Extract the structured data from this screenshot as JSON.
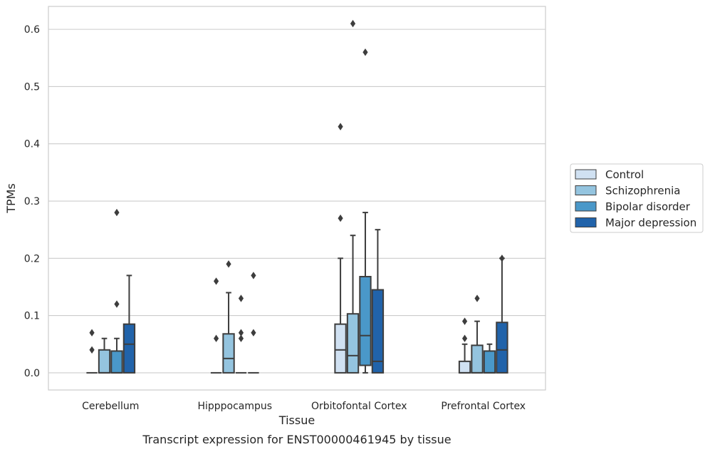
{
  "chart_data": {
    "type": "boxplot",
    "title": "",
    "caption": "Transcript expression for ENST00000461945 by tissue",
    "xlabel": "Tissue",
    "ylabel": "TPMs",
    "ylim": [
      -0.03,
      0.64
    ],
    "yticks": [
      0.0,
      0.1,
      0.2,
      0.3,
      0.4,
      0.5,
      0.6
    ],
    "ytick_labels": [
      "0.0",
      "0.1",
      "0.2",
      "0.3",
      "0.4",
      "0.5",
      "0.6"
    ],
    "grid": "horizontal",
    "legend_position": "right",
    "categories": [
      "Cerebellum",
      "Hipppocampus",
      "Orbitofontal Cortex",
      "Prefrontal Cortex"
    ],
    "series": [
      {
        "name": "Control",
        "color": "#d0e1f2",
        "boxes": [
          {
            "q1": 0.0,
            "median": 0.0,
            "q3": 0.0,
            "whisker_low": 0.0,
            "whisker_high": 0.0,
            "outliers": [
              0.07,
              0.04
            ]
          },
          {
            "q1": 0.0,
            "median": 0.0,
            "q3": 0.0,
            "whisker_low": 0.0,
            "whisker_high": 0.0,
            "outliers": [
              0.16,
              0.06
            ]
          },
          {
            "q1": 0.0,
            "median": 0.04,
            "q3": 0.085,
            "whisker_low": 0.0,
            "whisker_high": 0.2,
            "outliers": [
              0.43,
              0.27
            ]
          },
          {
            "q1": 0.0,
            "median": 0.0,
            "q3": 0.02,
            "whisker_low": 0.0,
            "whisker_high": 0.05,
            "outliers": [
              0.09,
              0.06
            ]
          }
        ]
      },
      {
        "name": "Schizophrenia",
        "color": "#94c4df",
        "boxes": [
          {
            "q1": 0.0,
            "median": 0.0,
            "q3": 0.04,
            "whisker_low": 0.0,
            "whisker_high": 0.06,
            "outliers": []
          },
          {
            "q1": 0.0,
            "median": 0.025,
            "q3": 0.068,
            "whisker_low": 0.0,
            "whisker_high": 0.14,
            "outliers": [
              0.19
            ]
          },
          {
            "q1": 0.0,
            "median": 0.03,
            "q3": 0.103,
            "whisker_low": 0.0,
            "whisker_high": 0.24,
            "outliers": [
              0.61
            ]
          },
          {
            "q1": 0.0,
            "median": 0.0,
            "q3": 0.048,
            "whisker_low": 0.0,
            "whisker_high": 0.09,
            "outliers": [
              0.13
            ]
          }
        ]
      },
      {
        "name": "Bipolar disorder",
        "color": "#4a98c9",
        "boxes": [
          {
            "q1": 0.0,
            "median": 0.0,
            "q3": 0.038,
            "whisker_low": 0.0,
            "whisker_high": 0.06,
            "outliers": [
              0.28,
              0.12
            ]
          },
          {
            "q1": 0.0,
            "median": 0.0,
            "q3": 0.0,
            "whisker_low": 0.0,
            "whisker_high": 0.0,
            "outliers": [
              0.13,
              0.07,
              0.06
            ]
          },
          {
            "q1": 0.013,
            "median": 0.065,
            "q3": 0.168,
            "whisker_low": 0.0,
            "whisker_high": 0.28,
            "outliers": [
              0.56
            ]
          },
          {
            "q1": 0.0,
            "median": 0.0,
            "q3": 0.038,
            "whisker_low": 0.0,
            "whisker_high": 0.05,
            "outliers": []
          }
        ]
      },
      {
        "name": "Major depression",
        "color": "#2163aa",
        "boxes": [
          {
            "q1": 0.0,
            "median": 0.05,
            "q3": 0.085,
            "whisker_low": 0.0,
            "whisker_high": 0.17,
            "outliers": []
          },
          {
            "q1": 0.0,
            "median": 0.0,
            "q3": 0.0,
            "whisker_low": 0.0,
            "whisker_high": 0.0,
            "outliers": [
              0.17,
              0.07
            ]
          },
          {
            "q1": 0.0,
            "median": 0.02,
            "q3": 0.145,
            "whisker_low": 0.0,
            "whisker_high": 0.25,
            "outliers": []
          },
          {
            "q1": 0.0,
            "median": 0.04,
            "q3": 0.088,
            "whisker_low": 0.0,
            "whisker_high": 0.2,
            "outliers": [
              0.2
            ]
          }
        ]
      }
    ]
  }
}
